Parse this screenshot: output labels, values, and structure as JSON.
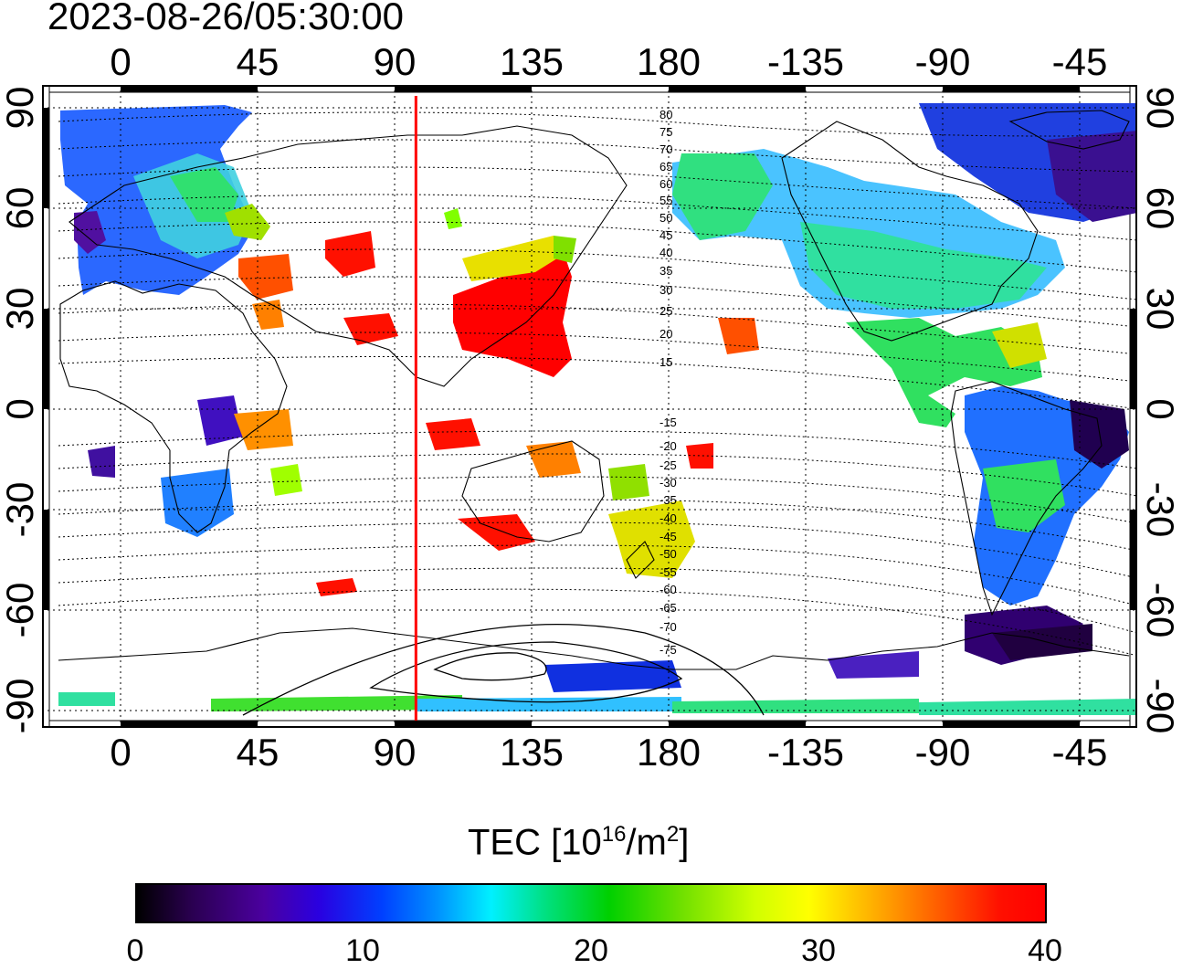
{
  "timestamp": "2023-08-26/05:30:00",
  "top_lon_ticks": [
    "0",
    "45",
    "90",
    "135",
    "180",
    "-135",
    "-90",
    "-45"
  ],
  "bottom_lon_ticks": [
    "0",
    "45",
    "90",
    "135",
    "180",
    "-135",
    "-90",
    "-45"
  ],
  "left_lat_ticks": [
    "90",
    "60",
    "30",
    "0",
    "-30",
    "-60",
    "-90"
  ],
  "right_lat_ticks": [
    "90",
    "60",
    "30",
    "0",
    "-30",
    "-60",
    "-90"
  ],
  "contour_labels": [
    "80",
    "75",
    "70",
    "65",
    "60",
    "55",
    "50",
    "45",
    "40",
    "35",
    "30",
    "25",
    "20",
    "15",
    "-15",
    "-20",
    "-25",
    "-30",
    "-35",
    "-40",
    "-45",
    "-50",
    "-55",
    "-60",
    "-65",
    "-70",
    "-75"
  ],
  "colorbar": {
    "title": "TEC  [10",
    "exponent": "16",
    "unit_mid": "/m",
    "unit_exp": "2",
    "unit_end": "]",
    "labels": [
      "0",
      "10",
      "20",
      "30",
      "40"
    ],
    "range": [
      0,
      40
    ]
  },
  "colors": {
    "terminator_line": "#ff0000",
    "coastline": "#000000"
  },
  "terminator_longitude": 97
}
